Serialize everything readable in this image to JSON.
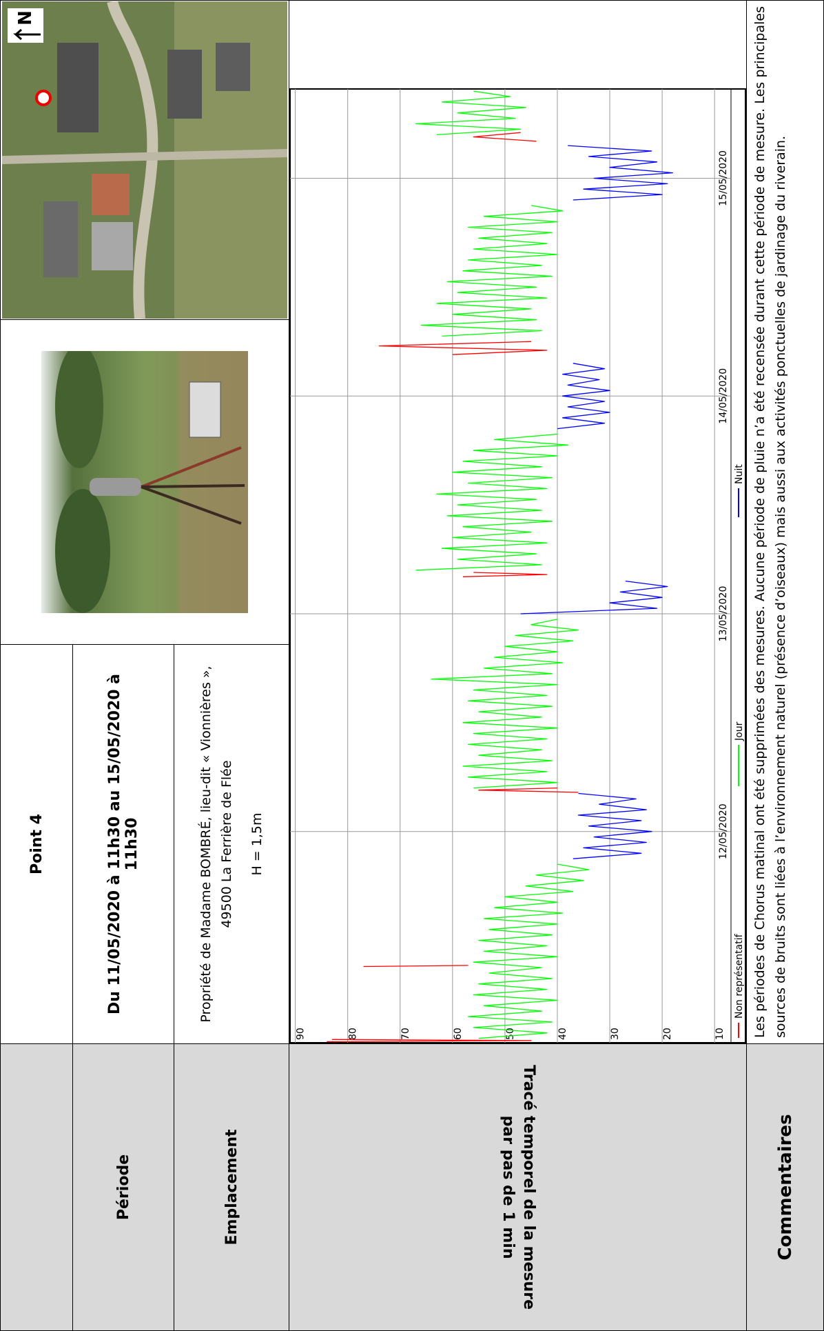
{
  "table": {
    "point": "Point 4",
    "period": {
      "label": "Période",
      "value": "Du 11/05/2020 à 11h30 au 15/05/2020 à 11h30"
    },
    "location": {
      "label": "Emplacement",
      "lines": [
        "Propriété de Madame BOMBRÉ, lieu-dit « Vionnières »,",
        "49500 La Ferrière de Flée",
        "H = 1,5m"
      ]
    },
    "trace": {
      "label": [
        "Tracé temporel de la mesure",
        "par pas de 1 min"
      ]
    },
    "comments": {
      "label": "Commentaires",
      "text": "Les périodes de Chorus matinal ont été supprimées des mesures. Aucune période de pluie n’a été recensée durant cette période de mesure. Les principales sources de bruits sont liées à l’environnement naturel (présence d’oiseaux) mais aussi aux activités ponctuelles de jardinage du riverain."
    }
  },
  "map": {
    "north": "N"
  },
  "chart_data": {
    "type": "line",
    "xlim": [
      11.03,
      15.41
    ],
    "ylim": [
      7,
      91
    ],
    "xticks": [
      {
        "value": 12,
        "label": "12/05/2020"
      },
      {
        "value": 13,
        "label": "13/05/2020"
      },
      {
        "value": 14,
        "label": "14/05/2020"
      },
      {
        "value": 15,
        "label": "15/05/2020"
      }
    ],
    "yticks": [
      10,
      20,
      30,
      40,
      50,
      60,
      70,
      80,
      90
    ],
    "grid": true,
    "legend": "bottom",
    "series": [
      {
        "name": "Non représentatif",
        "color": "#ff0000",
        "x": [
          11.035,
          11.04,
          11.045,
          11.2,
          11.38,
          11.385,
          11.9,
          12.18,
          12.19,
          12.2,
          12.5,
          13.17,
          13.18,
          13.19,
          13.5,
          14.19,
          14.21,
          14.23,
          14.25,
          14.6,
          15.17,
          15.19,
          15.21
        ],
        "values": [
          84,
          45,
          83,
          null,
          77,
          57,
          null,
          36,
          55,
          40,
          null,
          58,
          42,
          56,
          null,
          60,
          42,
          74,
          45,
          null,
          44,
          56,
          47
        ]
      },
      {
        "name": "Jour",
        "color": "#00ff00",
        "x": [
          11.05,
          11.075,
          11.1,
          11.125,
          11.15,
          11.175,
          11.2,
          11.225,
          11.25,
          11.275,
          11.3,
          11.325,
          11.35,
          11.375,
          11.4,
          11.425,
          11.45,
          11.475,
          11.5,
          11.525,
          11.55,
          11.575,
          11.6,
          11.625,
          11.65,
          11.675,
          11.7,
          11.725,
          11.75,
          11.775,
          11.8,
          11.825,
          11.85,
          11.9,
          12.2,
          12.225,
          12.25,
          12.275,
          12.3,
          12.325,
          12.35,
          12.375,
          12.4,
          12.425,
          12.45,
          12.475,
          12.5,
          12.525,
          12.55,
          12.575,
          12.6,
          12.625,
          12.65,
          12.675,
          12.7,
          12.725,
          12.75,
          12.775,
          12.8,
          12.825,
          12.85,
          12.875,
          12.9,
          12.925,
          12.95,
          12.975,
          13.1,
          13.2,
          13.225,
          13.25,
          13.275,
          13.3,
          13.325,
          13.35,
          13.375,
          13.4,
          13.425,
          13.45,
          13.475,
          13.5,
          13.525,
          13.55,
          13.575,
          13.6,
          13.625,
          13.65,
          13.675,
          13.7,
          13.725,
          13.75,
          13.775,
          13.8,
          13.825,
          14.0,
          14.275,
          14.3,
          14.325,
          14.35,
          14.375,
          14.4,
          14.425,
          14.45,
          14.475,
          14.5,
          14.525,
          14.55,
          14.575,
          14.6,
          14.625,
          14.65,
          14.675,
          14.7,
          14.725,
          14.75,
          14.775,
          14.8,
          14.825,
          14.85,
          14.875,
          15.0,
          15.2,
          15.225,
          15.25,
          15.275,
          15.3,
          15.325,
          15.35,
          15.375,
          15.4
        ],
        "values": [
          55,
          42,
          56,
          41,
          57,
          43,
          54,
          40,
          56,
          42,
          55,
          41,
          53,
          43,
          56,
          40,
          54,
          42,
          55,
          41,
          53,
          40,
          54,
          39,
          52,
          40,
          50,
          37,
          46,
          35,
          44,
          34,
          40,
          null,
          56,
          40,
          57,
          42,
          58,
          41,
          55,
          43,
          57,
          42,
          56,
          40,
          58,
          43,
          55,
          41,
          57,
          42,
          56,
          40,
          64,
          41,
          54,
          39,
          52,
          40,
          50,
          37,
          48,
          36,
          45,
          40,
          null,
          67,
          43,
          59,
          44,
          62,
          42,
          60,
          45,
          58,
          41,
          61,
          43,
          59,
          44,
          63,
          42,
          57,
          41,
          60,
          43,
          58,
          40,
          56,
          38,
          52,
          40,
          null,
          62,
          43,
          66,
          44,
          60,
          45,
          63,
          42,
          59,
          44,
          61,
          41,
          58,
          43,
          57,
          40,
          56,
          42,
          55,
          41,
          57,
          40,
          54,
          39,
          45,
          null,
          63,
          47,
          67,
          48,
          59,
          46,
          62,
          49,
          56
        ]
      },
      {
        "name": "Nuit",
        "color": "#0000ff",
        "x": [
          11.875,
          11.9,
          11.925,
          11.95,
          11.975,
          12.0,
          12.025,
          12.05,
          12.075,
          12.1,
          12.125,
          12.15,
          12.175,
          12.5,
          13.0,
          13.025,
          13.05,
          13.075,
          13.1,
          13.125,
          13.15,
          13.5,
          13.85,
          13.875,
          13.9,
          13.925,
          13.95,
          13.975,
          14.0,
          14.025,
          14.05,
          14.075,
          14.1,
          14.125,
          14.15,
          14.5,
          14.9,
          14.925,
          14.95,
          14.975,
          15.0,
          15.025,
          15.05,
          15.075,
          15.1,
          15.125,
          15.15
        ],
        "values": [
          37,
          24,
          35,
          23,
          33,
          22,
          34,
          24,
          36,
          23,
          32,
          25,
          36,
          null,
          47,
          21,
          30,
          20,
          28,
          19,
          27,
          null,
          40,
          31,
          39,
          30,
          38,
          31,
          39,
          30,
          38,
          32,
          39,
          31,
          37,
          null,
          37,
          20,
          35,
          19,
          33,
          18,
          30,
          21,
          34,
          22,
          38
        ]
      }
    ]
  }
}
